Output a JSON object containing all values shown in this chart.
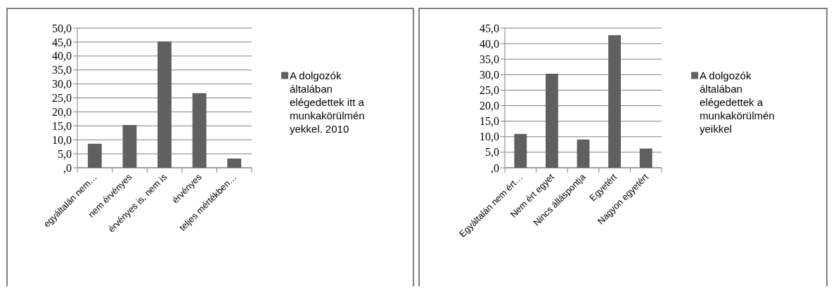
{
  "chart_data": [
    {
      "type": "bar",
      "categories": [
        "egyáltalán nem…",
        "nem érvényes",
        "érvényes is, nem is",
        "érvényes",
        "teljes mértékben…"
      ],
      "series": [
        {
          "name": "A dolgozók általában elégedettek itt a munkakörülményekkel. 2010",
          "color": "#606060",
          "values": [
            8.6,
            15.3,
            45.2,
            26.7,
            3.3
          ]
        }
      ],
      "ylim": [
        0,
        50
      ],
      "yticks": [
        {
          "value": 0,
          "label": ",0"
        },
        {
          "value": 5,
          "label": "5,0"
        },
        {
          "value": 10,
          "label": "10,0"
        },
        {
          "value": 15,
          "label": "15,0"
        },
        {
          "value": 20,
          "label": "20,0"
        },
        {
          "value": 25,
          "label": "25,0"
        },
        {
          "value": 30,
          "label": "30,0"
        },
        {
          "value": 35,
          "label": "35,0"
        },
        {
          "value": 40,
          "label": "40,0"
        },
        {
          "value": 45,
          "label": "45,0"
        },
        {
          "value": 50,
          "label": "50,0"
        }
      ],
      "grid": "y",
      "legend": "right"
    },
    {
      "type": "bar",
      "categories": [
        "Egyáltalán nem ért…",
        "Nem ért egyet",
        "Nincs álláspontja",
        "Egyetért",
        "Nagyon egyetért"
      ],
      "series": [
        {
          "name": "A dolgozók általában elégedettek a munkakörülményeikkel",
          "color": "#606060",
          "values": [
            10.9,
            30.3,
            9.1,
            42.7,
            6.2
          ]
        }
      ],
      "ylim": [
        0,
        45
      ],
      "yticks": [
        {
          "value": 0,
          "label": ",0"
        },
        {
          "value": 5,
          "label": "5,0"
        },
        {
          "value": 10,
          "label": "10,0"
        },
        {
          "value": 15,
          "label": "15,0"
        },
        {
          "value": 20,
          "label": "20,0"
        },
        {
          "value": 25,
          "label": "25,0"
        },
        {
          "value": 30,
          "label": "30,0"
        },
        {
          "value": 35,
          "label": "35,0"
        },
        {
          "value": 40,
          "label": "40,0"
        },
        {
          "value": 45,
          "label": "45,0"
        }
      ],
      "grid": "y",
      "legend": "right"
    }
  ]
}
